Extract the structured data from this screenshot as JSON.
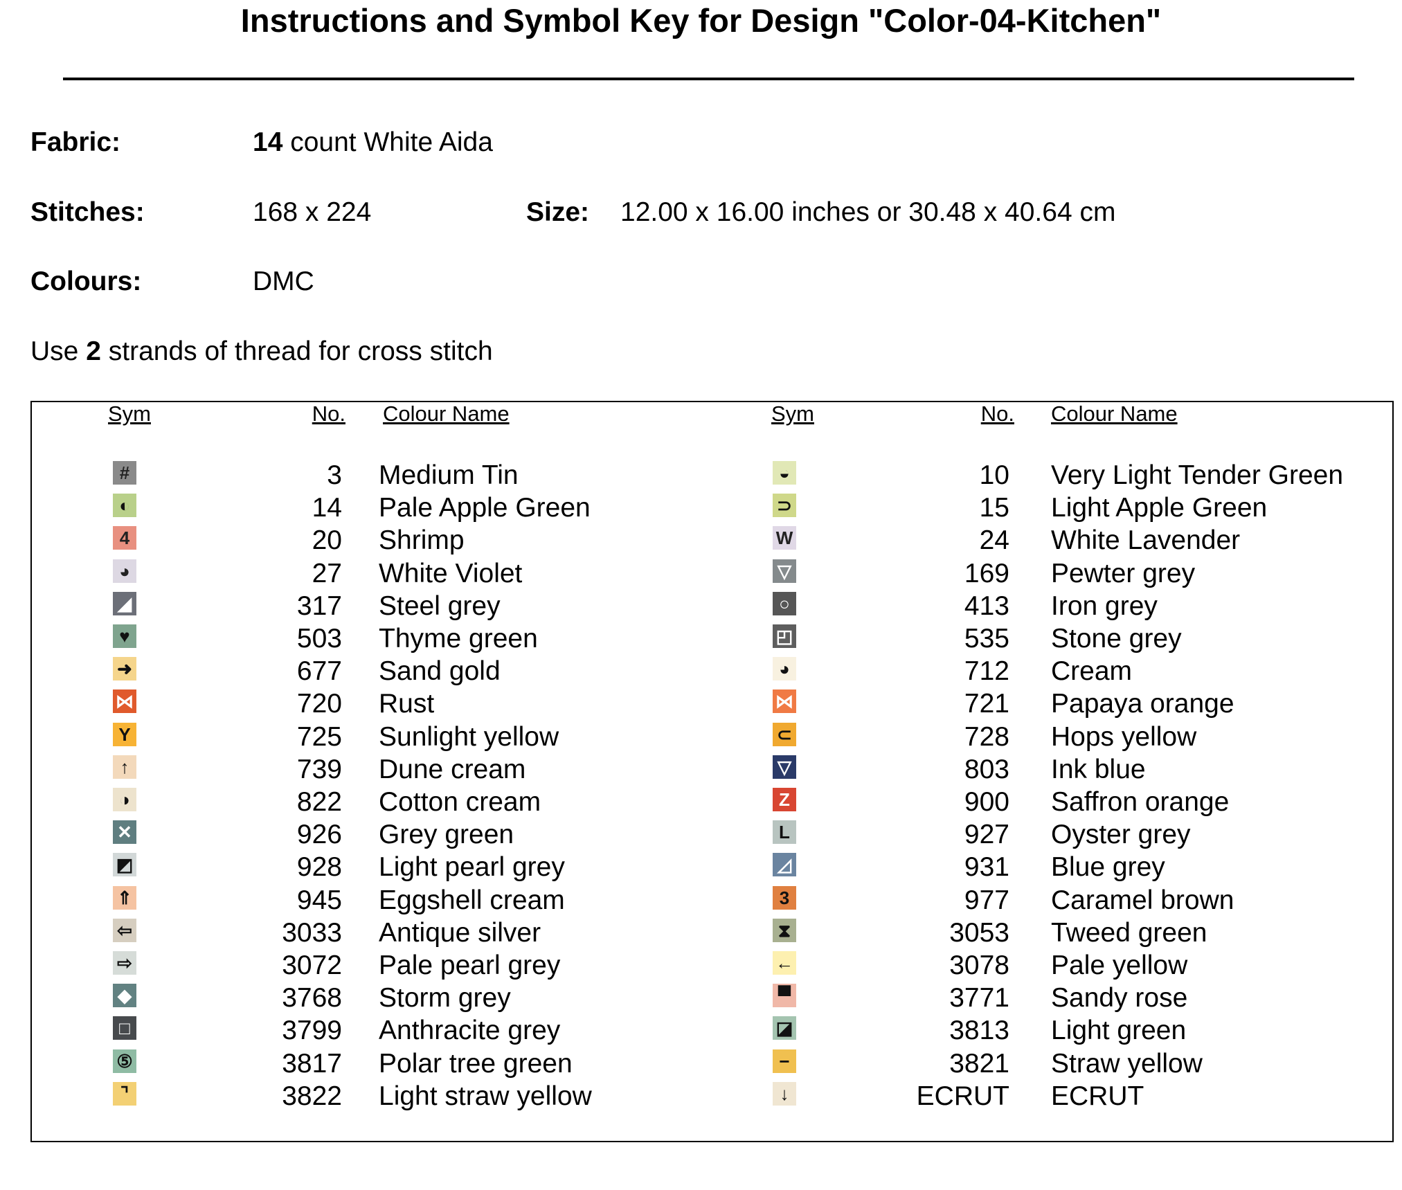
{
  "header": {
    "title": "Instructions and Symbol Key for Design \"Color-04-Kitchen\""
  },
  "fields": {
    "fabric": {
      "label": "Fabric:",
      "value_bold": "14",
      "value": " count White Aida"
    },
    "stitches": {
      "label": "Stitches:",
      "value": "168 x 224"
    },
    "size": {
      "label": "Size:",
      "value": "12.00 x 16.00 inches or 30.48 x 40.64 cm"
    },
    "colours": {
      "label": "Colours:",
      "value": "DMC"
    }
  },
  "note": {
    "before": "Use ",
    "bold": "2",
    "after": " strands of thread for cross stitch"
  },
  "table": {
    "headers": [
      "Sym",
      "No.",
      "Colour Name"
    ],
    "columns": [
      [
        {
          "symbol": "#",
          "color": "#8a8a8a",
          "ink": "#222",
          "no": "3",
          "name": "Medium Tin"
        },
        {
          "symbol": "◐",
          "color": "#b9d08a",
          "ink": "#111",
          "no": "14",
          "name": "Pale Apple Green"
        },
        {
          "symbol": "4",
          "color": "#e89080",
          "ink": "#222",
          "no": "20",
          "name": "Shrimp"
        },
        {
          "symbol": "◕",
          "color": "#ddd8e3",
          "ink": "#222",
          "no": "27",
          "name": "White Violet"
        },
        {
          "symbol": "◢",
          "color": "#6c6f78",
          "ink": "#fff",
          "no": "317",
          "name": "Steel grey"
        },
        {
          "symbol": "♥",
          "color": "#7fa48e",
          "ink": "#111",
          "no": "503",
          "name": "Thyme green"
        },
        {
          "symbol": "➜",
          "color": "#f5d58c",
          "ink": "#111",
          "no": "677",
          "name": "Sand gold"
        },
        {
          "symbol": "⋈",
          "color": "#e05a2c",
          "ink": "#fff",
          "no": "720",
          "name": "Rust"
        },
        {
          "symbol": "Y",
          "color": "#f7b335",
          "ink": "#111",
          "no": "725",
          "name": "Sunlight yellow"
        },
        {
          "symbol": "↑",
          "color": "#f3d9bb",
          "ink": "#111",
          "no": "739",
          "name": "Dune cream"
        },
        {
          "symbol": "◑",
          "color": "#ede3cd",
          "ink": "#111",
          "no": "822",
          "name": "Cotton cream"
        },
        {
          "symbol": "✕",
          "color": "#5f7e80",
          "ink": "#fff",
          "no": "926",
          "name": "Grey green"
        },
        {
          "symbol": "◩",
          "color": "#d2d8d8",
          "ink": "#111",
          "no": "928",
          "name": "Light pearl grey"
        },
        {
          "symbol": "⇑",
          "color": "#f5c3a2",
          "ink": "#111",
          "no": "945",
          "name": "Eggshell cream"
        },
        {
          "symbol": "⇦",
          "color": "#d6cec0",
          "ink": "#111",
          "no": "3033",
          "name": "Antique silver"
        },
        {
          "symbol": "⇨",
          "color": "#d6dcd8",
          "ink": "#111",
          "no": "3072",
          "name": "Pale pearl grey"
        },
        {
          "symbol": "◆",
          "color": "#628282",
          "ink": "#fff",
          "no": "3768",
          "name": "Storm grey"
        },
        {
          "symbol": "□",
          "color": "#474a4d",
          "ink": "#fff",
          "no": "3799",
          "name": "Anthracite grey"
        },
        {
          "symbol": "⑤",
          "color": "#8fbba4",
          "ink": "#111",
          "no": "3817",
          "name": "Polar tree green"
        },
        {
          "symbol": "⌝",
          "color": "#f3d074",
          "ink": "#111",
          "no": "3822",
          "name": "Light straw yellow"
        }
      ],
      [
        {
          "symbol": "◒",
          "color": "#e1e8b6",
          "ink": "#111",
          "no": "10",
          "name": "Very Light Tender Green"
        },
        {
          "symbol": "⊃",
          "color": "#cfd88a",
          "ink": "#111",
          "no": "15",
          "name": "Light Apple Green"
        },
        {
          "symbol": "W",
          "color": "#e0d8e6",
          "ink": "#222",
          "no": "24",
          "name": "White Lavender"
        },
        {
          "symbol": "▽",
          "color": "#848a8c",
          "ink": "#fff",
          "no": "169",
          "name": "Pewter grey"
        },
        {
          "symbol": "○",
          "color": "#565656",
          "ink": "#fff",
          "no": "413",
          "name": "Iron grey"
        },
        {
          "symbol": "◰",
          "color": "#5e5e5e",
          "ink": "#fff",
          "no": "535",
          "name": "Stone grey"
        },
        {
          "symbol": "◕",
          "color": "#f8f1e0",
          "ink": "#111",
          "no": "712",
          "name": "Cream"
        },
        {
          "symbol": "⋈",
          "color": "#f07a44",
          "ink": "#fff",
          "no": "721",
          "name": "Papaya orange"
        },
        {
          "symbol": "⊂",
          "color": "#f0a930",
          "ink": "#111",
          "no": "728",
          "name": "Hops yellow"
        },
        {
          "symbol": "▽",
          "color": "#2a3a68",
          "ink": "#fff",
          "no": "803",
          "name": "Ink blue"
        },
        {
          "symbol": "Z",
          "color": "#d84632",
          "ink": "#fff",
          "no": "900",
          "name": "Saffron orange"
        },
        {
          "symbol": "L",
          "color": "#b8c4c0",
          "ink": "#111",
          "no": "927",
          "name": "Oyster grey"
        },
        {
          "symbol": "◿",
          "color": "#6a84a0",
          "ink": "#fff",
          "no": "931",
          "name": "Blue grey"
        },
        {
          "symbol": "3",
          "color": "#e08040",
          "ink": "#111",
          "no": "977",
          "name": "Caramel brown"
        },
        {
          "symbol": "⧗",
          "color": "#a8b090",
          "ink": "#111",
          "no": "3053",
          "name": "Tweed green"
        },
        {
          "symbol": "←",
          "color": "#fdf0b0",
          "ink": "#111",
          "no": "3078",
          "name": "Pale yellow"
        },
        {
          "symbol": "▀",
          "color": "#f0b8a8",
          "ink": "#111",
          "no": "3771",
          "name": "Sandy rose"
        },
        {
          "symbol": "◪",
          "color": "#a4c4b0",
          "ink": "#111",
          "no": "3813",
          "name": "Light green"
        },
        {
          "symbol": "−",
          "color": "#f0c050",
          "ink": "#111",
          "no": "3821",
          "name": "Straw yellow"
        },
        {
          "symbol": "↓",
          "color": "#f0e6d2",
          "ink": "#111",
          "no": "ECRUT",
          "name": "ECRUT"
        }
      ]
    ]
  }
}
